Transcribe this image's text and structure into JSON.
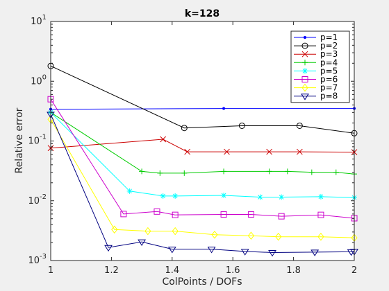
{
  "chart_data": {
    "type": "line",
    "title": "k=128",
    "xlabel": "ColPoints / DOFs",
    "ylabel": "Relative error",
    "xlim": [
      1,
      2
    ],
    "ylim": [
      0.001,
      10
    ],
    "yscale": "log",
    "grid": false,
    "legend_position": "top-right",
    "x_ticks": [
      "1",
      "1.2",
      "1.4",
      "1.6",
      "1.8",
      "2"
    ],
    "x_tick_values": [
      1,
      1.2,
      1.4,
      1.6,
      1.8,
      2
    ],
    "y_tick_values": [
      0.001,
      0.01,
      0.1,
      1,
      10
    ],
    "y_ticks": [
      {
        "base": "10",
        "exp": "-3"
      },
      {
        "base": "10",
        "exp": "-2"
      },
      {
        "base": "10",
        "exp": "-1"
      },
      {
        "base": "10",
        "exp": "0"
      },
      {
        "base": "10",
        "exp": "1"
      }
    ],
    "series": [
      {
        "name": "p=1",
        "color": "#0000ff",
        "marker": "dot",
        "x": [
          1,
          1.57,
          2
        ],
        "y": [
          0.34,
          0.35,
          0.35
        ]
      },
      {
        "name": "p=2",
        "color": "#000000",
        "marker": "circle",
        "x": [
          1,
          1.44,
          1.63,
          1.82,
          2
        ],
        "y": [
          1.8,
          0.165,
          0.18,
          0.18,
          0.135
        ]
      },
      {
        "name": "p=3",
        "color": "#cc0000",
        "marker": "x",
        "x": [
          1,
          1.37,
          1.45,
          1.58,
          1.72,
          1.82,
          2
        ],
        "y": [
          0.076,
          0.107,
          0.066,
          0.066,
          0.066,
          0.066,
          0.065
        ]
      },
      {
        "name": "p=4",
        "color": "#00cc00",
        "marker": "plus",
        "x": [
          1,
          1.3,
          1.36,
          1.44,
          1.57,
          1.72,
          1.78,
          1.86,
          1.94,
          2
        ],
        "y": [
          0.3,
          0.031,
          0.029,
          0.029,
          0.031,
          0.031,
          0.031,
          0.03,
          0.03,
          0.028
        ]
      },
      {
        "name": "p=5",
        "color": "#00ffff",
        "marker": "star",
        "x": [
          1,
          1.26,
          1.37,
          1.41,
          1.57,
          1.69,
          1.76,
          1.89,
          2
        ],
        "y": [
          0.3,
          0.0145,
          0.012,
          0.012,
          0.0123,
          0.0115,
          0.0115,
          0.0117,
          0.0113
        ]
      },
      {
        "name": "p=6",
        "color": "#cc00cc",
        "marker": "square",
        "x": [
          1,
          1.24,
          1.35,
          1.41,
          1.57,
          1.66,
          1.76,
          1.89,
          2
        ],
        "y": [
          0.5,
          0.006,
          0.0066,
          0.0058,
          0.0059,
          0.0059,
          0.0055,
          0.0058,
          0.0051
        ]
      },
      {
        "name": "p=7",
        "color": "#ffff00",
        "marker": "diamond",
        "x": [
          1,
          1.21,
          1.32,
          1.41,
          1.54,
          1.66,
          1.75,
          1.89,
          2
        ],
        "y": [
          0.23,
          0.0033,
          0.0031,
          0.0031,
          0.0027,
          0.0026,
          0.0025,
          0.0025,
          0.0024
        ]
      },
      {
        "name": "p=8",
        "color": "#000080",
        "marker": "triangle-down",
        "x": [
          1,
          1.19,
          1.3,
          1.4,
          1.53,
          1.64,
          1.73,
          1.87,
          1.99,
          2
        ],
        "y": [
          0.28,
          0.00165,
          0.00205,
          0.00155,
          0.00155,
          0.00142,
          0.00136,
          0.00138,
          0.0014,
          0.00142
        ]
      }
    ]
  }
}
